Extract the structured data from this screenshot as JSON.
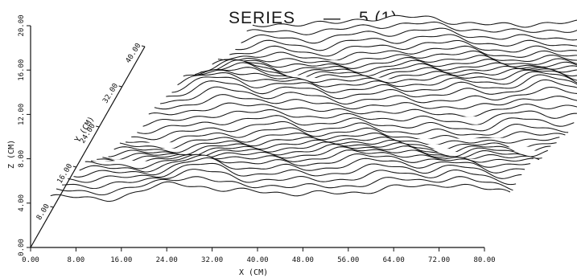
{
  "chart_data": {
    "type": "line",
    "chart_kind": "3d stacked profile plot",
    "title": "SERIES",
    "title_marker": "—",
    "title_series": "5 (1)",
    "xlabel": "X (CM)",
    "ylabel": "Y (CM)",
    "zlabel": "Z (CM)",
    "x_ticks": [
      "0.00",
      "8.00",
      "16.00",
      "24.00",
      "32.00",
      "40.00",
      "48.00",
      "56.00",
      "64.00",
      "72.00",
      "80.00"
    ],
    "y_ticks": [
      "8.00",
      "16.00",
      "24.00",
      "32.00",
      "40.00"
    ],
    "z_ticks": [
      "0.00",
      "4.00",
      "8.00",
      "12.00",
      "16.00",
      "20.00"
    ],
    "xlim": [
      0,
      84
    ],
    "ylim": [
      0,
      40
    ],
    "zlim": [
      0,
      20
    ],
    "grid": false,
    "legend": "none",
    "profile_count": 36,
    "profile_y_range": [
      5,
      38
    ],
    "profile_x_start": [
      1,
      20
    ],
    "profile_x_end": [
      82,
      92
    ],
    "base_height": 2.2,
    "trend": 0.5,
    "surface_features": [
      {
        "x": 24,
        "amplitude": 1.4,
        "width": 7,
        "drift": 0.0
      },
      {
        "x": 36,
        "amplitude": 1.0,
        "width": 6,
        "drift": 0.05
      },
      {
        "x": 52,
        "amplitude": 1.1,
        "width": 8,
        "drift": -0.05
      },
      {
        "x": 62,
        "amplitude": 0.8,
        "width": 6,
        "drift": 0.0
      },
      {
        "x": 74,
        "amplitude": 1.3,
        "width": 6,
        "drift": 0.04
      },
      {
        "x": 84,
        "amplitude": 0.7,
        "width": 5,
        "drift": 0.0
      }
    ]
  }
}
